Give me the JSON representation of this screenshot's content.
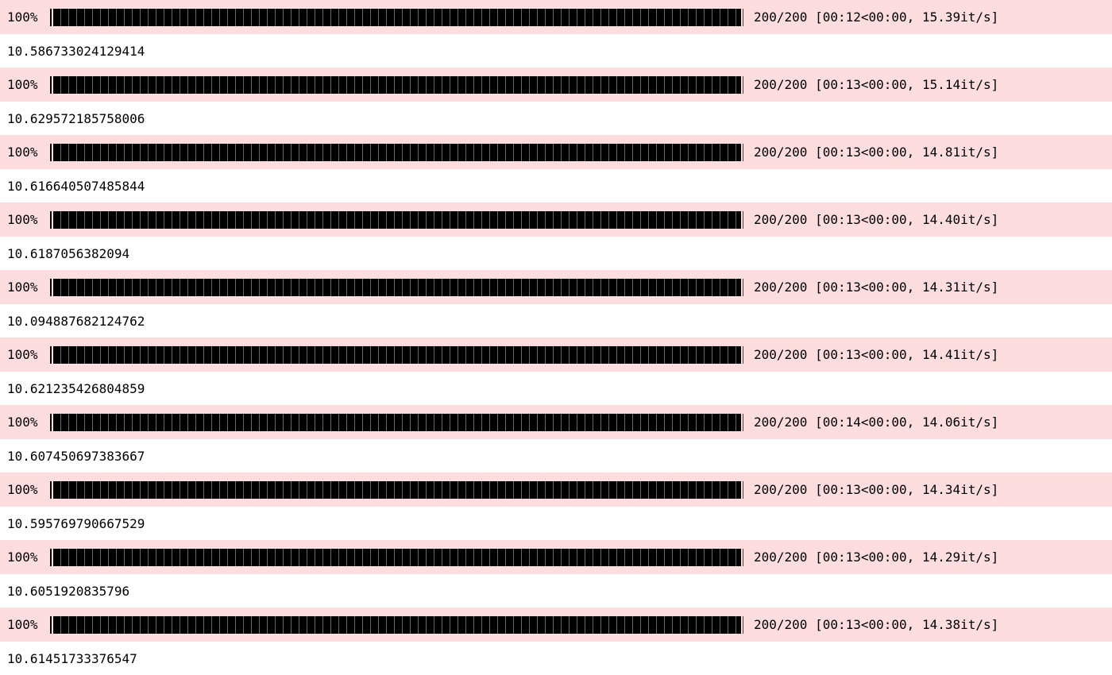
{
  "theme": {
    "stderr_background": "#fddddd",
    "stdout_background": "#ffffff",
    "bar_color": "#000000"
  },
  "runs": [
    {
      "percent": "100%",
      "progress": 1.0,
      "count": "200/200",
      "timing": "[00:12<00:00, 15.39it/s]",
      "result": "10.586733024129414"
    },
    {
      "percent": "100%",
      "progress": 1.0,
      "count": "200/200",
      "timing": "[00:13<00:00, 15.14it/s]",
      "result": "10.629572185758006"
    },
    {
      "percent": "100%",
      "progress": 1.0,
      "count": "200/200",
      "timing": "[00:13<00:00, 14.81it/s]",
      "result": "10.616640507485844"
    },
    {
      "percent": "100%",
      "progress": 1.0,
      "count": "200/200",
      "timing": "[00:13<00:00, 14.40it/s]",
      "result": "10.6187056382094"
    },
    {
      "percent": "100%",
      "progress": 1.0,
      "count": "200/200",
      "timing": "[00:13<00:00, 14.31it/s]",
      "result": "10.094887682124762"
    },
    {
      "percent": "100%",
      "progress": 1.0,
      "count": "200/200",
      "timing": "[00:13<00:00, 14.41it/s]",
      "result": "10.621235426804859"
    },
    {
      "percent": "100%",
      "progress": 1.0,
      "count": "200/200",
      "timing": "[00:14<00:00, 14.06it/s]",
      "result": "10.607450697383667"
    },
    {
      "percent": "100%",
      "progress": 1.0,
      "count": "200/200",
      "timing": "[00:13<00:00, 14.34it/s]",
      "result": "10.595769790667529"
    },
    {
      "percent": "100%",
      "progress": 1.0,
      "count": "200/200",
      "timing": "[00:13<00:00, 14.29it/s]",
      "result": "10.6051920835796"
    },
    {
      "percent": "100%",
      "progress": 1.0,
      "count": "200/200",
      "timing": "[00:13<00:00, 14.38it/s]",
      "result": "10.61451733376547"
    }
  ]
}
